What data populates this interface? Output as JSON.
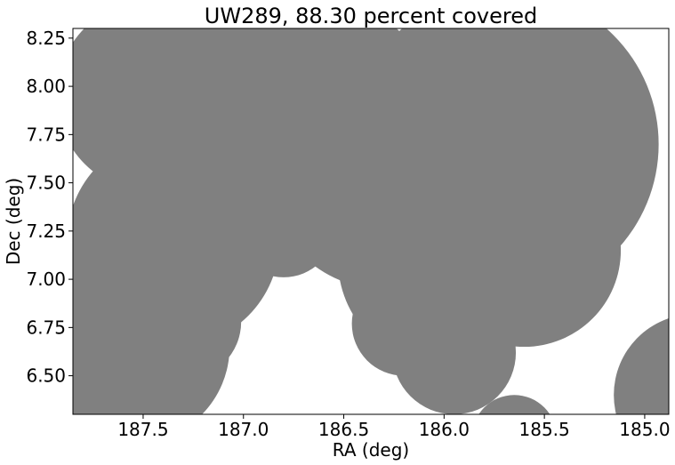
{
  "chart_data": {
    "type": "scatter",
    "title": "UW289, 88.30 percent covered",
    "xlabel": "RA (deg)",
    "ylabel": "Dec (deg)",
    "xlim": [
      187.85,
      184.88
    ],
    "ylim": [
      6.3,
      8.3
    ],
    "x_ticks": [
      {
        "value": 187.5,
        "label": "187.5"
      },
      {
        "value": 187.0,
        "label": "187.0"
      },
      {
        "value": 186.5,
        "label": "186.5"
      },
      {
        "value": 186.0,
        "label": "186.0"
      },
      {
        "value": 185.5,
        "label": "185.5"
      },
      {
        "value": 185.0,
        "label": "185.0"
      }
    ],
    "y_ticks": [
      {
        "value": 6.5,
        "label": "6.50"
      },
      {
        "value": 6.75,
        "label": "6.75"
      },
      {
        "value": 7.0,
        "label": "7.00"
      },
      {
        "value": 7.25,
        "label": "7.25"
      },
      {
        "value": 7.5,
        "label": "7.50"
      },
      {
        "value": 7.75,
        "label": "7.75"
      },
      {
        "value": 8.0,
        "label": "8.00"
      },
      {
        "value": 8.25,
        "label": "8.25"
      }
    ],
    "grid": false,
    "color": "#808080",
    "series": [
      {
        "points": [
          {
            "ra": 187.35,
            "dec": 7.2,
            "radius_deg": 0.55
          },
          {
            "ra": 187.55,
            "dec": 6.65,
            "radius_deg": 0.5
          },
          {
            "ra": 187.6,
            "dec": 6.4,
            "radius_deg": 0.35
          },
          {
            "ra": 187.3,
            "dec": 6.78,
            "radius_deg": 0.3
          },
          {
            "ra": 187.15,
            "dec": 6.95,
            "radius_deg": 0.12
          },
          {
            "ra": 187.1,
            "dec": 7.85,
            "radius_deg": 0.55
          },
          {
            "ra": 187.45,
            "dec": 7.95,
            "radius_deg": 0.5
          },
          {
            "ra": 186.6,
            "dec": 7.9,
            "radius_deg": 0.55
          },
          {
            "ra": 186.3,
            "dec": 7.55,
            "radius_deg": 0.6
          },
          {
            "ra": 185.7,
            "dec": 7.7,
            "radius_deg": 0.8
          },
          {
            "ra": 186.8,
            "dec": 7.28,
            "radius_deg": 0.27
          },
          {
            "ra": 186.0,
            "dec": 7.1,
            "radius_deg": 0.55
          },
          {
            "ra": 185.6,
            "dec": 7.15,
            "radius_deg": 0.5
          },
          {
            "ra": 186.2,
            "dec": 6.77,
            "radius_deg": 0.27
          },
          {
            "ra": 185.95,
            "dec": 6.62,
            "radius_deg": 0.32
          },
          {
            "ra": 185.55,
            "dec": 6.95,
            "radius_deg": 0.25
          },
          {
            "ra": 185.65,
            "dec": 6.18,
            "radius_deg": 0.22
          },
          {
            "ra": 184.75,
            "dec": 6.4,
            "radius_deg": 0.42
          }
        ]
      }
    ]
  }
}
